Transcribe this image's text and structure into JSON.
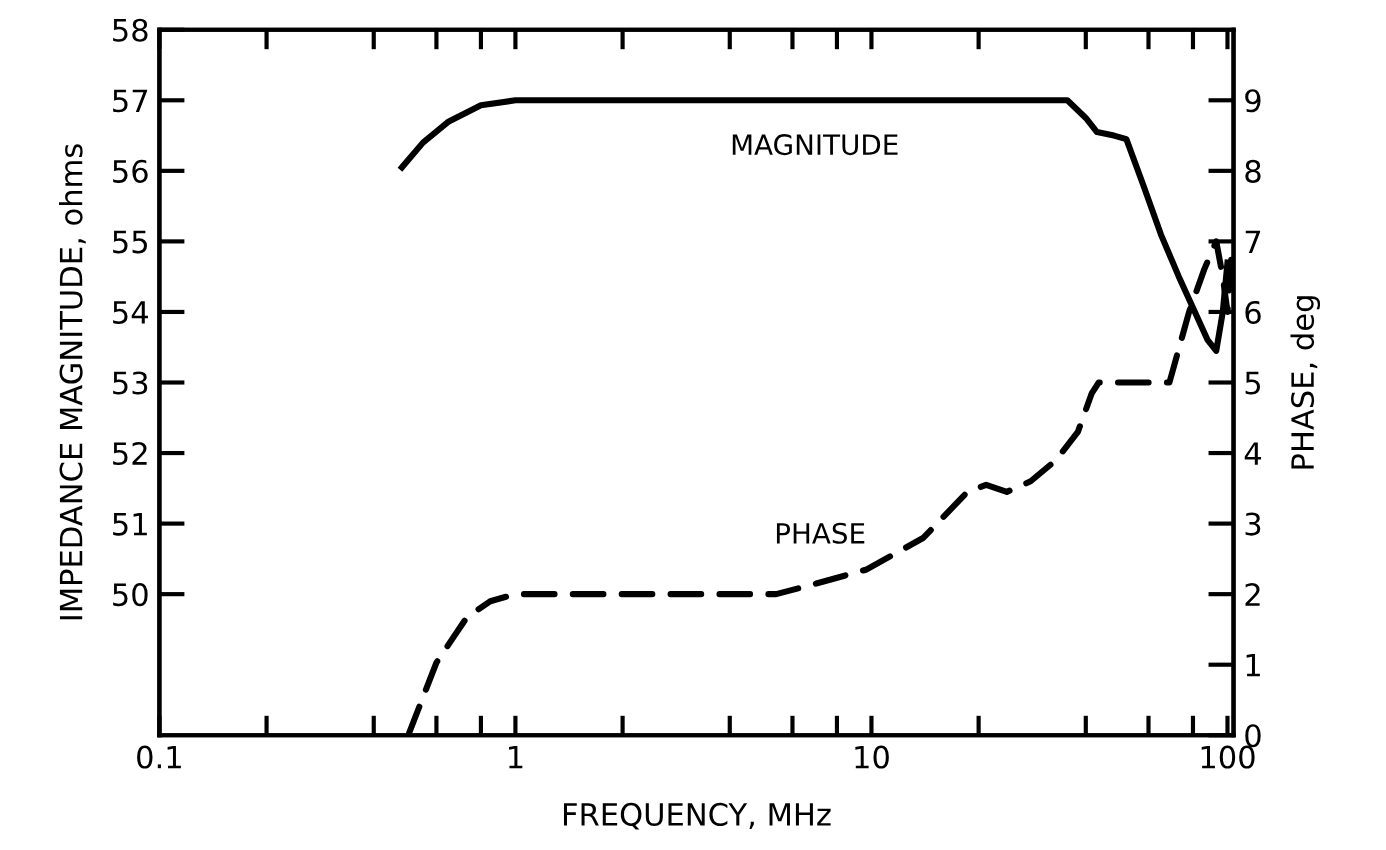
{
  "chart_data": {
    "type": "line",
    "xlabel": "FREQUENCY, MHz",
    "ylabel": "IMPEDANCE MAGNITUDE, ohms",
    "y2label": "PHASE, deg",
    "log": "x",
    "grid": false,
    "legend": false,
    "marker": "none",
    "xlim": [
      0.1,
      104
    ],
    "ylim": [
      48,
      58
    ],
    "y2lim": [
      0,
      10
    ],
    "xticks": [
      {
        "value": 0.1,
        "label": "0.1"
      },
      {
        "value": 0.2,
        "label": null
      },
      {
        "value": 0.4,
        "label": null
      },
      {
        "value": 0.6,
        "label": null
      },
      {
        "value": 0.8,
        "label": null
      },
      1,
      {
        "value": 2,
        "label": null
      },
      {
        "value": 4,
        "label": null
      },
      {
        "value": 6,
        "label": null
      },
      {
        "value": 8,
        "label": null
      },
      10,
      {
        "value": 20,
        "label": null
      },
      {
        "value": 40,
        "label": null
      },
      {
        "value": 60,
        "label": null
      },
      {
        "value": 80,
        "label": null
      },
      100
    ],
    "yticks": [
      50,
      51,
      52,
      53,
      54,
      55,
      56,
      57,
      58
    ],
    "y2ticks": [
      0,
      1,
      2,
      3,
      4,
      5,
      6,
      7,
      8,
      9
    ],
    "series": [
      {
        "name": "MAGNITUDE",
        "color": "#000000",
        "line_style": "solid",
        "x": [
          0.48,
          0.55,
          0.65,
          0.8,
          1.0,
          2,
          5,
          10,
          20,
          35.5,
          40,
          43,
          48,
          52,
          58,
          65,
          73,
          81,
          88,
          93,
          97,
          100
        ],
        "values": [
          56.05,
          56.4,
          56.7,
          56.93,
          57.0,
          57.0,
          57.0,
          57.0,
          57.0,
          57.0,
          56.75,
          56.55,
          56.5,
          56.45,
          55.8,
          55.1,
          54.5,
          54.0,
          53.6,
          53.45,
          54.0,
          54.7
        ]
      },
      {
        "name": "PHASE",
        "color": "#000000",
        "line_style": "dashed",
        "axis": "y2",
        "x": [
          0.5,
          0.6,
          0.73,
          0.85,
          1.0,
          2,
          4,
          5.4,
          7,
          9.7,
          14,
          18.6,
          21,
          24,
          28,
          33,
          38,
          41.6,
          43.5,
          55,
          68.7,
          78,
          86,
          93,
          97,
          100,
          103
        ],
        "values": [
          0,
          1.03,
          1.67,
          1.9,
          2.0,
          2.0,
          2.0,
          2.0,
          2.15,
          2.35,
          2.8,
          3.45,
          3.55,
          3.45,
          3.6,
          3.9,
          4.3,
          4.85,
          5.0,
          5.0,
          5.0,
          6.0,
          6.6,
          7.0,
          6.5,
          6.0,
          6.9
        ]
      }
    ]
  }
}
